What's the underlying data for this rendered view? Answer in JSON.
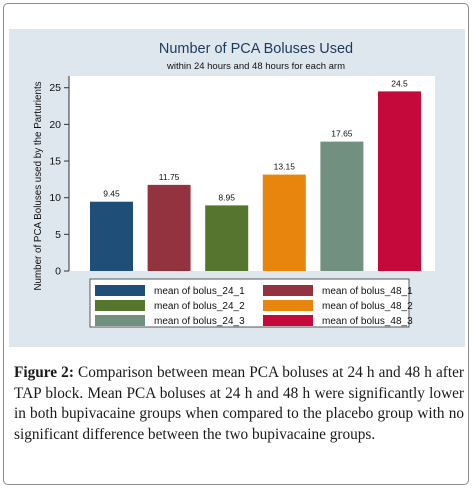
{
  "chart_data": {
    "type": "bar",
    "title": "Number of PCA Boluses Used",
    "subtitle": "within 24 hours and 48 hours for each arm",
    "xlabel": "",
    "ylabel": "Number of PCA Boluses used by the Parturients",
    "ylim": [
      0,
      25
    ],
    "yticks": [
      0,
      5,
      10,
      15,
      20,
      25
    ],
    "grid": false,
    "legend_position": "bottom",
    "series": [
      {
        "name": "mean of bolus_24_1",
        "value": 9.45,
        "label": "9.45",
        "color": "#1f4e79"
      },
      {
        "name": "mean of bolus_48_1",
        "value": 11.75,
        "label": "11.75",
        "color": "#943340"
      },
      {
        "name": "mean of bolus_24_2",
        "value": 8.95,
        "label": "8.95",
        "color": "#567630"
      },
      {
        "name": "mean of bolus_48_2",
        "value": 13.15,
        "label": "13.15",
        "color": "#e8850c"
      },
      {
        "name": "mean of bolus_24_3",
        "value": 17.65,
        "label": "17.65",
        "color": "#72907f"
      },
      {
        "name": "mean of bolus_48_3",
        "value": 24.5,
        "label": "24.5",
        "color": "#c5093b"
      }
    ]
  },
  "caption": {
    "label": "Figure 2:",
    "text": "Comparison between mean PCA boluses at 24 h and 48 h after TAP block. Mean PCA boluses at 24 h and 48 h were significantly lower in both bupivacaine groups when compared to the placebo group with no significant difference between the two bupivacaine groups."
  }
}
